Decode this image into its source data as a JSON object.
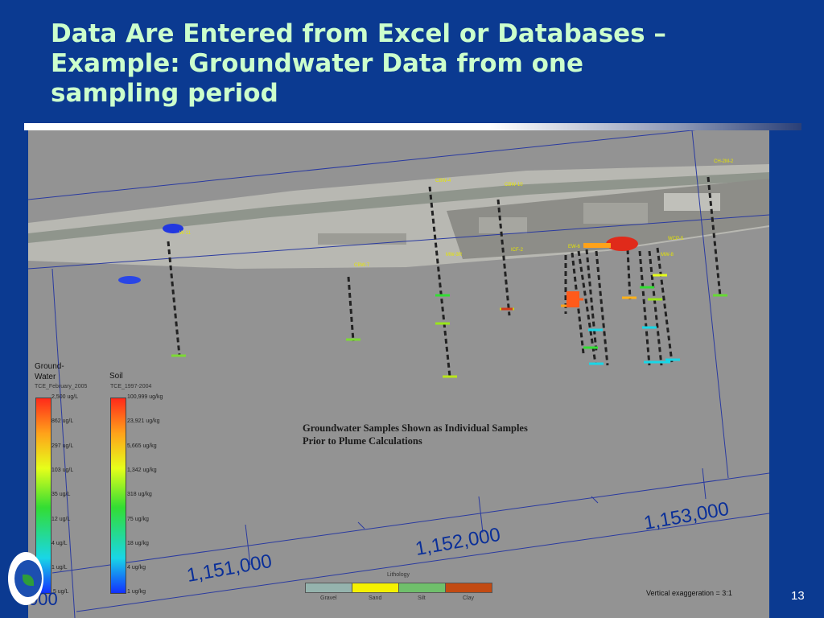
{
  "slide": {
    "title_lines": [
      "Data Are Entered from Excel or Databases –",
      "Example:  Groundwater Data from one",
      "sampling period"
    ],
    "page_number": "13"
  },
  "scene": {
    "annotation_lines": [
      "Groundwater Samples Shown as Individual Samples",
      "Prior to Plume Calculations"
    ],
    "well_labels": [
      "CBW-4",
      "CBW-10",
      "CH-2M-2",
      "CBW-7",
      "MW-3R",
      "ICF-2",
      "W-11",
      "EW-6",
      "WCP-5",
      "MW-8"
    ],
    "coordinates": [
      "1,151,000",
      "1,152,000",
      "1,153,000",
      "000"
    ],
    "vertical_exaggeration": "Vertical exaggeration = 3:1"
  },
  "legend": {
    "groundwater": {
      "title_line1": "Ground-",
      "title_line2": "Water",
      "subtitle": "TCE_February_2005",
      "ticks": [
        "2,500 ug/L",
        "862 ug/L",
        "297 ug/L",
        "103 ug/L",
        "35 ug/L",
        "12 ug/L",
        "4 ug/L",
        "1 ug/L",
        ".5 ug/L"
      ]
    },
    "soil": {
      "title": "Soil",
      "subtitle": "TCE_1997-2004",
      "ticks": [
        "100,999 ug/kg",
        "23,921 ug/kg",
        "5,665 ug/kg",
        "1,342 ug/kg",
        "318 ug/kg",
        "75 ug/kg",
        "18 ug/kg",
        "4 ug/kg",
        "1 ug/kg"
      ]
    },
    "colors": {
      "high": "#ff2a1a",
      "mid_high": "#ffa21a",
      "mid": "#e6ff1a",
      "mid_low": "#33dd33",
      "low": "#19d6e6",
      "lowest": "#1230ff"
    }
  },
  "lithology": {
    "title": "Lithology",
    "items": [
      {
        "label": "Gravel",
        "color": "#95b3ad"
      },
      {
        "label": "Sand",
        "color": "#f6f200"
      },
      {
        "label": "Silt",
        "color": "#6fbf6b"
      },
      {
        "label": "Clay",
        "color": "#c24a12"
      }
    ]
  }
}
